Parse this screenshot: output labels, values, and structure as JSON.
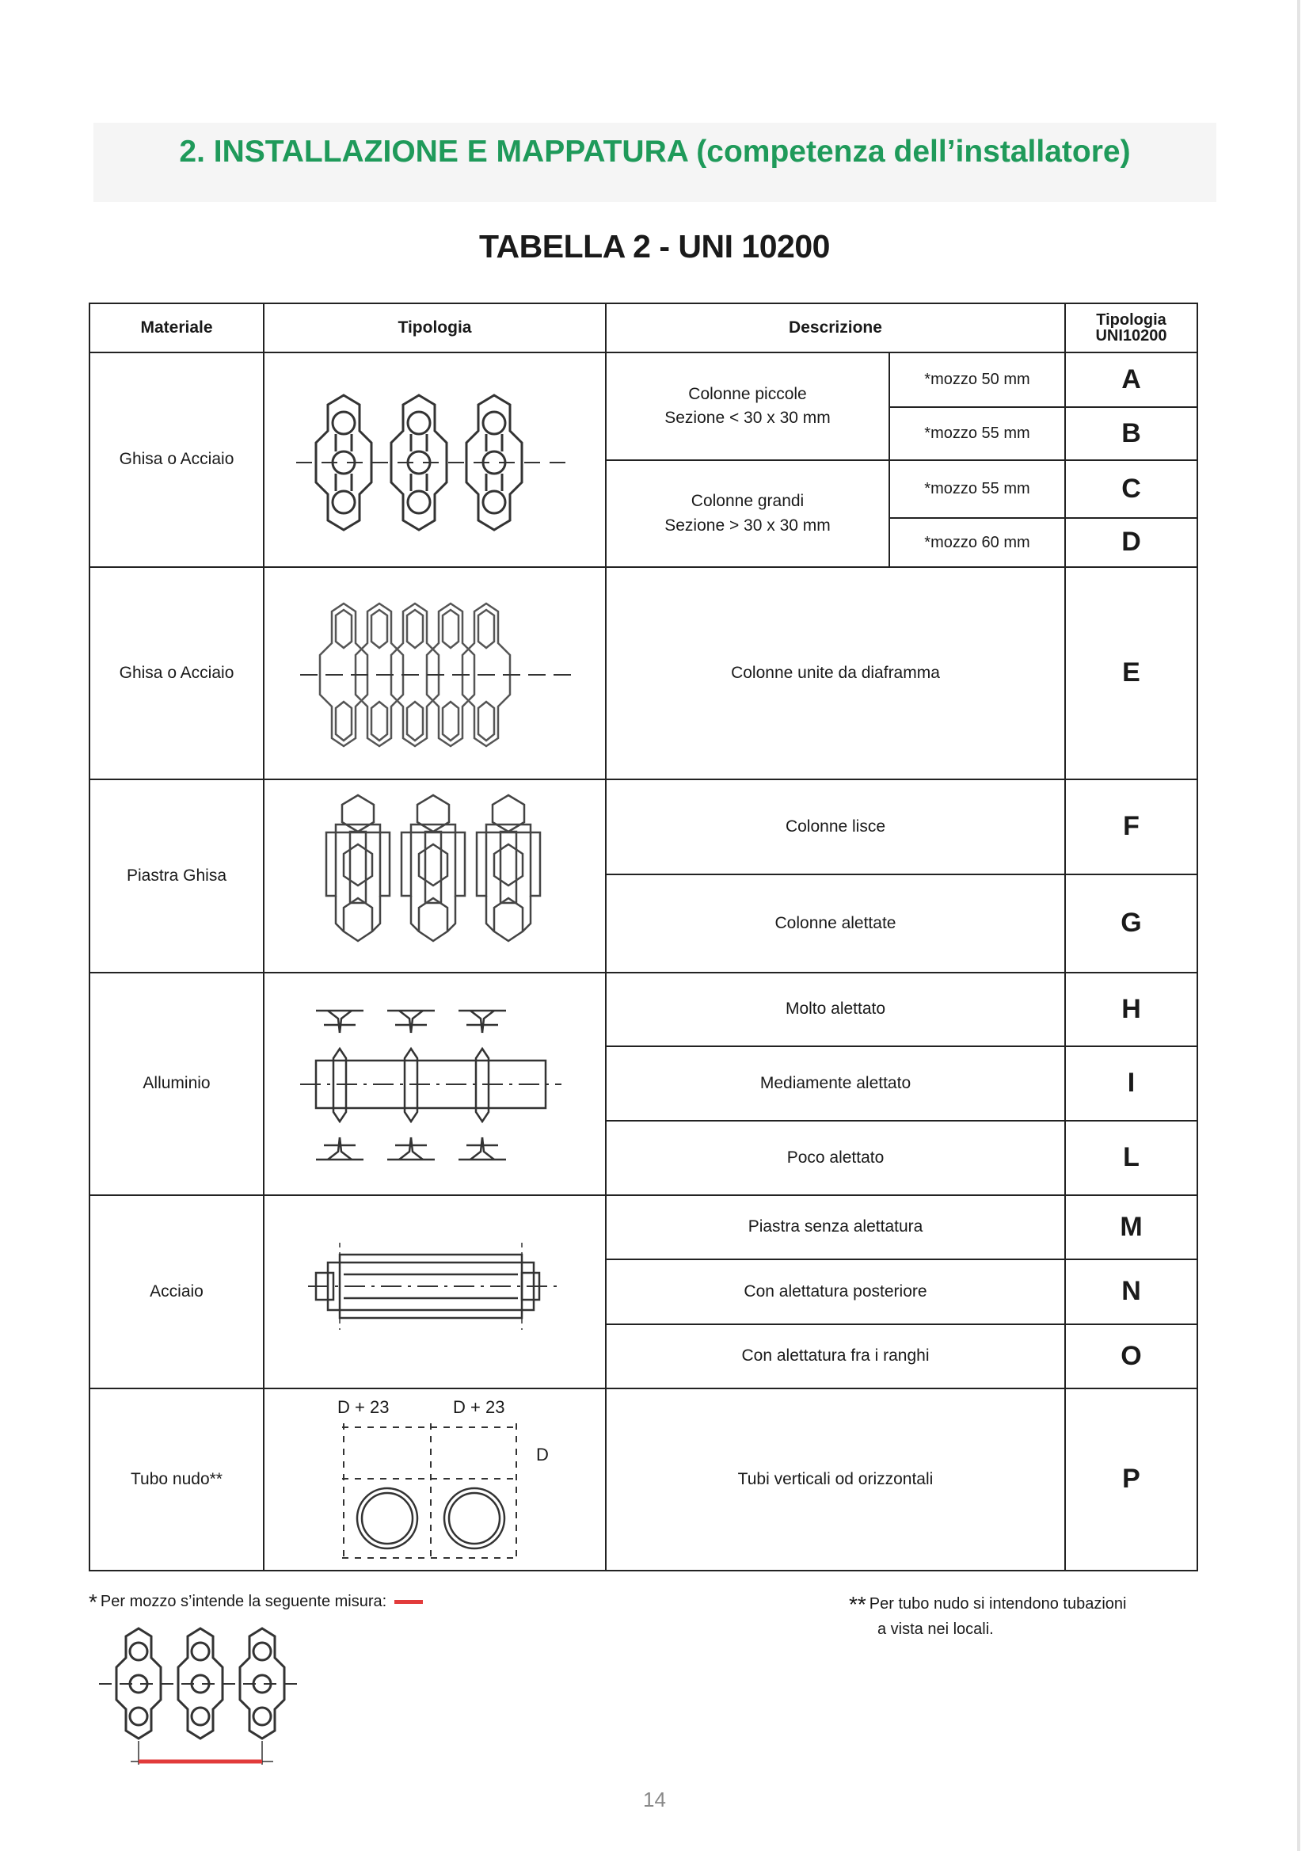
{
  "header": {
    "section_title": "2. INSTALLAZIONE E MAPPATURA (competenza dell’installatore)",
    "table_title": "TABELLA 2 - UNI 10200"
  },
  "table": {
    "columns": {
      "materiale": "Materiale",
      "tipologia": "Tipologia",
      "descrizione": "Descrizione",
      "code_line1": "Tipologia",
      "code_line2": "UNI10200"
    },
    "rows": [
      {
        "materiale": "Ghisa o Acciaio",
        "icon": "radiator-columns-icon",
        "groups": [
          {
            "desc1": "Colonne piccole",
            "desc2": "Sezione < 30 x 30 mm",
            "subs": [
              {
                "mozzo": "mozzo 50 mm",
                "code": "A"
              },
              {
                "mozzo": "mozzo 55 mm",
                "code": "B"
              }
            ]
          },
          {
            "desc1": "Colonne grandi",
            "desc2": "Sezione > 30 x 30 mm",
            "subs": [
              {
                "mozzo": "mozzo 55 mm",
                "code": "C"
              },
              {
                "mozzo": "mozzo 60 mm",
                "code": "D"
              }
            ]
          }
        ]
      },
      {
        "materiale": "Ghisa o Acciaio",
        "icon": "radiator-diaphragm-icon",
        "items": [
          {
            "desc": "Colonne unite da diaframma",
            "code": "E"
          }
        ]
      },
      {
        "materiale": "Piastra Ghisa",
        "icon": "cast-iron-plate-icon",
        "items": [
          {
            "desc": "Colonne lisce",
            "code": "F"
          },
          {
            "desc": "Colonne alettate",
            "code": "G"
          }
        ]
      },
      {
        "materiale": "Alluminio",
        "icon": "aluminium-radiator-icon",
        "items": [
          {
            "desc": "Molto alettato",
            "code": "H"
          },
          {
            "desc": "Mediamente alettato",
            "code": "I"
          },
          {
            "desc": "Poco alettato",
            "code": "L"
          }
        ]
      },
      {
        "materiale": "Acciaio",
        "icon": "steel-panel-icon",
        "items": [
          {
            "desc": "Piastra senza alettatura",
            "code": "M"
          },
          {
            "desc": "Con alettatura posteriore",
            "code": "N"
          },
          {
            "desc": "Con alettatura fra i ranghi",
            "code": "O"
          }
        ]
      },
      {
        "materiale": "Tubo nudo**",
        "icon": "bare-pipe-icon",
        "dimension_labels": {
          "spacing_a": "D + 23",
          "spacing_b": "D + 23",
          "diameter": "D"
        },
        "items": [
          {
            "desc": "Tubi verticali od orizzontali",
            "code": "P"
          }
        ]
      }
    ]
  },
  "footnotes": {
    "star_symbol": "*",
    "mozzo_note": "Per mozzo s’intende la seguente misura:",
    "double_star_symbol": "**",
    "tubo_note_line1": "Per tubo nudo si intendono tubazioni",
    "tubo_note_line2": "a vista nei locali.",
    "accent_color": "#e23b3b"
  },
  "page_number": "14"
}
